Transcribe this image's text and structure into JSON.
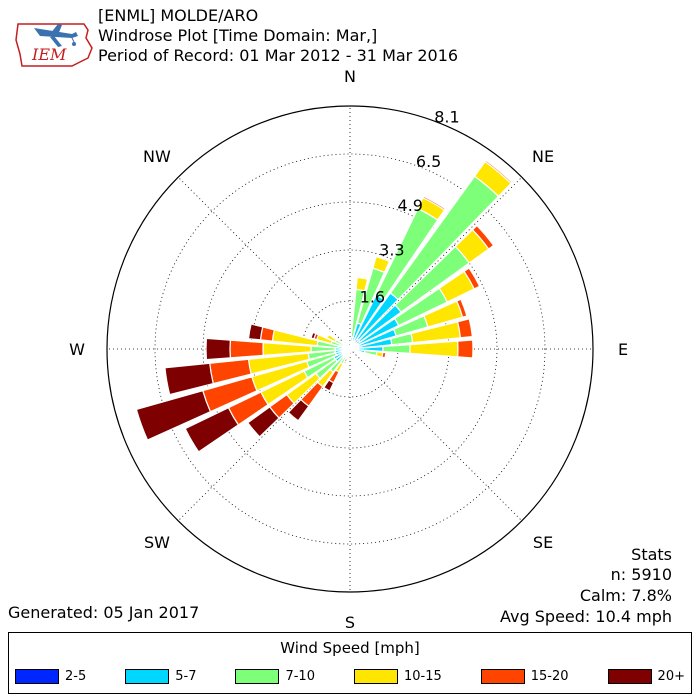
{
  "header": {
    "logo_text": "IEM",
    "line1": "[ENML] MOLDE/ARO",
    "line2": "Windrose Plot [Time Domain: Mar,]",
    "line3": "Period of Record: 01 Mar 2012 - 31 Mar 2016"
  },
  "footer": {
    "generated": "Generated: 05 Jan 2017"
  },
  "stats": {
    "title": "Stats",
    "n": "n: 5910",
    "calm": "Calm: 7.8%",
    "avg_speed": "Avg Speed: 10.4 mph"
  },
  "legend": {
    "title": "Wind Speed [mph]",
    "items": [
      {
        "label": "2-5",
        "color": "#0026ff"
      },
      {
        "label": "5-7",
        "color": "#00d7ff"
      },
      {
        "label": "7-10",
        "color": "#7dff7a"
      },
      {
        "label": "10-15",
        "color": "#ffe600"
      },
      {
        "label": "15-20",
        "color": "#ff4400"
      },
      {
        "label": "20+",
        "color": "#7f0000"
      }
    ]
  },
  "chart_data": {
    "type": "windrose",
    "radial_ticks": [
      "1.6",
      "3.3",
      "4.9",
      "6.5",
      "8.1"
    ],
    "radial_tick_values": [
      1.6,
      3.3,
      4.9,
      6.5,
      8.1
    ],
    "r_max": 8.1,
    "direction_labels": [
      "N",
      "NE",
      "E",
      "SE",
      "S",
      "SW",
      "W",
      "NW"
    ],
    "speed_bins": [
      "2-5",
      "5-7",
      "7-10",
      "10-15",
      "15-20",
      "20+"
    ],
    "colors": [
      "#0026ff",
      "#00d7ff",
      "#7dff7a",
      "#ffe600",
      "#ff4400",
      "#7f0000"
    ],
    "sectors": [
      {
        "dir": 0,
        "values": [
          0.05,
          0.05,
          0,
          0,
          0,
          0
        ]
      },
      {
        "dir": 10,
        "values": [
          0.1,
          0.3,
          1.6,
          0.4,
          0,
          0
        ]
      },
      {
        "dir": 20,
        "values": [
          0.2,
          0.7,
          1.9,
          0.4,
          0,
          0
        ]
      },
      {
        "dir": 30,
        "values": [
          0.3,
          1.7,
          3.2,
          0.4,
          0.05,
          0
        ]
      },
      {
        "dir": 40,
        "values": [
          0.4,
          1.9,
          4.8,
          0.6,
          0.05,
          0
        ]
      },
      {
        "dir": 50,
        "values": [
          0.4,
          1.7,
          2.8,
          0.8,
          0.2,
          0
        ]
      },
      {
        "dir": 60,
        "values": [
          0.3,
          1.5,
          1.8,
          1.0,
          0.2,
          0
        ]
      },
      {
        "dir": 70,
        "values": [
          0.3,
          1.3,
          1.1,
          1.2,
          0.15,
          0
        ]
      },
      {
        "dir": 80,
        "values": [
          0.2,
          1.2,
          0.7,
          1.6,
          0.4,
          0
        ]
      },
      {
        "dir": 90,
        "values": [
          0.2,
          0.9,
          0.9,
          1.6,
          0.5,
          0
        ]
      },
      {
        "dir": 100,
        "values": [
          0.1,
          0.4,
          0.4,
          0.2,
          0.1,
          0
        ]
      },
      {
        "dir": 110,
        "values": [
          0.05,
          0.1,
          0,
          0,
          0,
          0
        ]
      },
      {
        "dir": 120,
        "values": [
          0.05,
          0,
          0,
          0,
          0,
          0
        ]
      },
      {
        "dir": 130,
        "values": [
          0.05,
          0,
          0,
          0,
          0,
          0
        ]
      },
      {
        "dir": 140,
        "values": [
          0.05,
          0,
          0,
          0,
          0,
          0
        ]
      },
      {
        "dir": 150,
        "values": [
          0.05,
          0,
          0,
          0,
          0,
          0
        ]
      },
      {
        "dir": 160,
        "values": [
          0.05,
          0,
          0,
          0,
          0,
          0
        ]
      },
      {
        "dir": 170,
        "values": [
          0.05,
          0.05,
          0,
          0,
          0,
          0
        ]
      },
      {
        "dir": 180,
        "values": [
          0.05,
          0.05,
          0,
          0,
          0,
          0
        ]
      },
      {
        "dir": 190,
        "values": [
          0.05,
          0.1,
          0.1,
          0.1,
          0,
          0
        ]
      },
      {
        "dir": 200,
        "values": [
          0.05,
          0.1,
          0.1,
          0.1,
          0.1,
          0.05
        ]
      },
      {
        "dir": 210,
        "values": [
          0.05,
          0.2,
          0.3,
          0.3,
          0.4,
          0.3
        ]
      },
      {
        "dir": 220,
        "values": [
          0.05,
          0.3,
          0.6,
          0.6,
          0.8,
          0.6
        ]
      },
      {
        "dir": 230,
        "values": [
          0.1,
          0.5,
          0.8,
          1.2,
          0.7,
          0.9
        ]
      },
      {
        "dir": 240,
        "values": [
          0.1,
          0.5,
          1.1,
          1.6,
          1.2,
          1.6
        ]
      },
      {
        "dir": 250,
        "values": [
          0.1,
          0.4,
          1.0,
          1.9,
          1.7,
          2.3
        ]
      },
      {
        "dir": 260,
        "values": [
          0.1,
          0.4,
          0.9,
          2.0,
          1.3,
          1.5
        ]
      },
      {
        "dir": 270,
        "values": [
          0.1,
          0.4,
          0.8,
          1.6,
          1.1,
          0.8
        ]
      },
      {
        "dir": 280,
        "values": [
          0.1,
          0.3,
          0.7,
          1.5,
          0.4,
          0.4
        ]
      },
      {
        "dir": 290,
        "values": [
          0.05,
          0.3,
          0.3,
          0.5,
          0.1,
          0.1
        ]
      },
      {
        "dir": 300,
        "values": [
          0.05,
          0.2,
          0.3,
          0.3,
          0,
          0
        ]
      },
      {
        "dir": 310,
        "values": [
          0.05,
          0.1,
          0.1,
          0.05,
          0,
          0
        ]
      },
      {
        "dir": 320,
        "values": [
          0.05,
          0.05,
          0,
          0,
          0,
          0
        ]
      },
      {
        "dir": 330,
        "values": [
          0.05,
          0,
          0,
          0,
          0,
          0
        ]
      },
      {
        "dir": 340,
        "values": [
          0.05,
          0,
          0,
          0,
          0,
          0
        ]
      },
      {
        "dir": 350,
        "values": [
          0.05,
          0.05,
          0,
          0,
          0,
          0
        ]
      }
    ]
  }
}
